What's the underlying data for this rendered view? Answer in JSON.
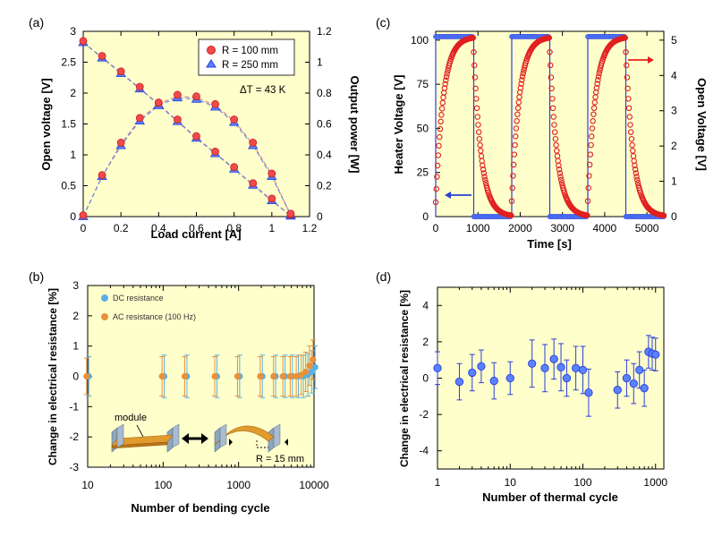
{
  "chart_data": [
    {
      "panel": "(a)",
      "type": "scatter",
      "xlabel": "Load current [A]",
      "ylabel": "Open voltage [V]",
      "y2label": "Output power [W]",
      "xlim": [
        0,
        1.2
      ],
      "ylim": [
        0,
        3
      ],
      "y2lim": [
        0,
        1.2
      ],
      "xticks": [
        "0",
        "0.2",
        "0.4",
        "0.6",
        "0.8",
        "1",
        "1.2"
      ],
      "yticks": [
        "0",
        "0.5",
        "1",
        "1.5",
        "2",
        "2.5",
        "3"
      ],
      "y2ticks": [
        "0",
        "0.2",
        "0.4",
        "0.6",
        "0.8",
        "1",
        "1.2"
      ],
      "annotation": "ΔT = 43 K",
      "legend": [
        "R = 100 mm",
        "R = 250 mm"
      ],
      "x": [
        0,
        0.1,
        0.2,
        0.3,
        0.4,
        0.5,
        0.6,
        0.7,
        0.8,
        0.9,
        1.0,
        1.1
      ],
      "series": [
        {
          "name": "Voltage R = 100 mm",
          "axis": "left",
          "values": [
            2.82,
            2.58,
            2.33,
            2.08,
            1.82,
            1.55,
            1.28,
            1.03,
            0.78,
            0.52,
            0.27,
            0.01
          ]
        },
        {
          "name": "Voltage R = 250 mm",
          "axis": "left",
          "values": [
            2.82,
            2.57,
            2.32,
            2.07,
            1.81,
            1.54,
            1.27,
            1.02,
            0.77,
            0.51,
            0.26,
            0.01
          ]
        },
        {
          "name": "Power R = 100 mm",
          "axis": "right",
          "values": [
            0.0,
            0.26,
            0.47,
            0.63,
            0.73,
            0.78,
            0.77,
            0.72,
            0.62,
            0.47,
            0.27,
            0.01
          ]
        },
        {
          "name": "Power R = 250 mm",
          "axis": "right",
          "values": [
            0.0,
            0.26,
            0.46,
            0.62,
            0.72,
            0.77,
            0.76,
            0.71,
            0.61,
            0.46,
            0.26,
            0.01
          ]
        }
      ]
    },
    {
      "panel": "(c)",
      "type": "scatter",
      "xlabel": "Time [s]",
      "ylabel": "Heater Voltage [V]",
      "y2label": "Open Voltage [V]",
      "xlim": [
        0,
        5400
      ],
      "ylim": [
        0,
        105
      ],
      "y2lim": [
        0,
        5.25
      ],
      "xticks": [
        "0",
        "1000",
        "2000",
        "3000",
        "4000",
        "5000"
      ],
      "yticks": [
        "0",
        "25",
        "50",
        "75",
        "100"
      ],
      "y2ticks": [
        "0",
        "1",
        "2",
        "3",
        "4",
        "5"
      ],
      "heater_on_intervals": [
        [
          0,
          900
        ],
        [
          1800,
          2700
        ],
        [
          3600,
          4500
        ]
      ],
      "heater_voltage_on": 102,
      "open_voltage_peak": 5.1,
      "open_voltage_time_constant_s": 180,
      "sample_interval_s": 30
    },
    {
      "panel": "(b)",
      "type": "scatter",
      "xlabel": "Number of bending cycle",
      "ylabel": "Change in electrical resistance [%]",
      "xscale": "log",
      "xlim": [
        10,
        10000
      ],
      "ylim": [
        -3,
        3
      ],
      "xticks": [
        "10",
        "100",
        "1000",
        "10000"
      ],
      "yticks": [
        "-3",
        "-2",
        "-1",
        "0",
        "1",
        "2",
        "3"
      ],
      "legend": [
        "DC resistance",
        "AC resistance (100 Hz)"
      ],
      "inset_labels": [
        "module",
        "R = 15 mm"
      ],
      "x": [
        10,
        100,
        200,
        500,
        1000,
        2000,
        3000,
        4000,
        5000,
        6000,
        7000,
        8000,
        9000,
        10000
      ],
      "series": [
        {
          "name": "DC resistance",
          "values": [
            0.0,
            0.0,
            0.0,
            0.0,
            0.0,
            0.0,
            0.0,
            0.0,
            0.0,
            0.0,
            0.0,
            0.05,
            0.15,
            0.3
          ],
          "errors": [
            0.65,
            0.7,
            0.7,
            0.7,
            0.7,
            0.7,
            0.7,
            0.7,
            0.7,
            0.7,
            0.7,
            0.7,
            0.7,
            0.7
          ]
        },
        {
          "name": "AC resistance (100 Hz)",
          "values": [
            0.0,
            0.0,
            0.0,
            0.0,
            0.0,
            0.0,
            0.0,
            0.0,
            0.0,
            0.0,
            0.05,
            0.15,
            0.35,
            0.55
          ],
          "errors": [
            0.6,
            0.65,
            0.65,
            0.65,
            0.65,
            0.65,
            0.65,
            0.65,
            0.65,
            0.65,
            0.65,
            0.65,
            0.65,
            0.65
          ]
        }
      ]
    },
    {
      "panel": "(d)",
      "type": "scatter",
      "xlabel": "Number of thermal cycle",
      "ylabel": "Change in electrical resistance [%]",
      "xscale": "log",
      "xlim": [
        1,
        1300
      ],
      "ylim": [
        -5,
        5
      ],
      "xticks": [
        "1",
        "10",
        "100",
        "1000"
      ],
      "yticks": [
        "-4",
        "-2",
        "0",
        "2",
        "4"
      ],
      "x": [
        1,
        2,
        3,
        4,
        6,
        10,
        20,
        30,
        40,
        50,
        60,
        80,
        100,
        120,
        300,
        400,
        500,
        600,
        700,
        800,
        900,
        1000
      ],
      "values": [
        0.55,
        -0.2,
        0.3,
        0.65,
        -0.15,
        0.0,
        0.8,
        0.55,
        1.05,
        0.6,
        0.0,
        0.55,
        0.45,
        -0.8,
        -0.65,
        0.0,
        -0.3,
        0.45,
        -0.55,
        1.45,
        1.35,
        1.3
      ],
      "errors": [
        0.9,
        1.0,
        1.0,
        0.9,
        1.0,
        0.9,
        1.3,
        1.3,
        1.1,
        1.3,
        1.0,
        1.2,
        1.3,
        1.3,
        1.0,
        1.0,
        1.1,
        1.0,
        1.0,
        0.9,
        0.9,
        0.9
      ]
    }
  ],
  "colors": {
    "plot_bg": "#ffffcc",
    "red_marker": "#f04a4a",
    "red_edge": "#c81e1e",
    "red_line": "#e07a8a",
    "blue_marker": "#5a82ff",
    "blue_edge": "#2a3fd8",
    "blue_line": "#5a82e6",
    "dc_color": "#5ab0e0",
    "ac_color": "#e8913a"
  }
}
